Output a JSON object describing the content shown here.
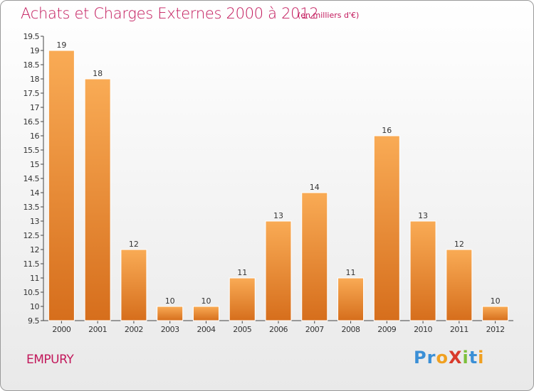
{
  "header": {
    "title": "Achats et Charges Externes 2000 à 2012",
    "subtitle": "(en milliers d'€)"
  },
  "footer": {
    "commune": "EMPURY",
    "logo_text": "Proxiti",
    "logo_letters": [
      {
        "ch": "P",
        "color": "#3a8fd6"
      },
      {
        "ch": "r",
        "color": "#3a8fd6"
      },
      {
        "ch": "o",
        "color": "#f0a020"
      },
      {
        "ch": "X",
        "color": "#d93a2b"
      },
      {
        "ch": "i",
        "color": "#7cbf3a"
      },
      {
        "ch": "t",
        "color": "#3a8fd6"
      },
      {
        "ch": "i",
        "color": "#f0a020"
      }
    ]
  },
  "chart_data": {
    "type": "bar",
    "categories": [
      "2000",
      "2001",
      "2002",
      "2003",
      "2004",
      "2005",
      "2006",
      "2007",
      "2008",
      "2009",
      "2010",
      "2011",
      "2012"
    ],
    "values": [
      19,
      18,
      12,
      10,
      10,
      11,
      13,
      14,
      11,
      16,
      13,
      12,
      10
    ],
    "ylim": [
      9.5,
      19.5
    ],
    "yticks": [
      "9.5",
      "10",
      "10.5",
      "11",
      "11.5",
      "12",
      "12.5",
      "13",
      "13.5",
      "14",
      "14.5",
      "15",
      "15.5",
      "16",
      "16.5",
      "17",
      "17.5",
      "18",
      "18.5",
      "19",
      "19.5"
    ],
    "xlabel": "",
    "ylabel": "",
    "grid": false,
    "legend": "none",
    "colors": {
      "bar_light": "#f7a850",
      "bar_dark": "#d9701e",
      "text": "#c2185b",
      "axis": "#333333"
    }
  }
}
